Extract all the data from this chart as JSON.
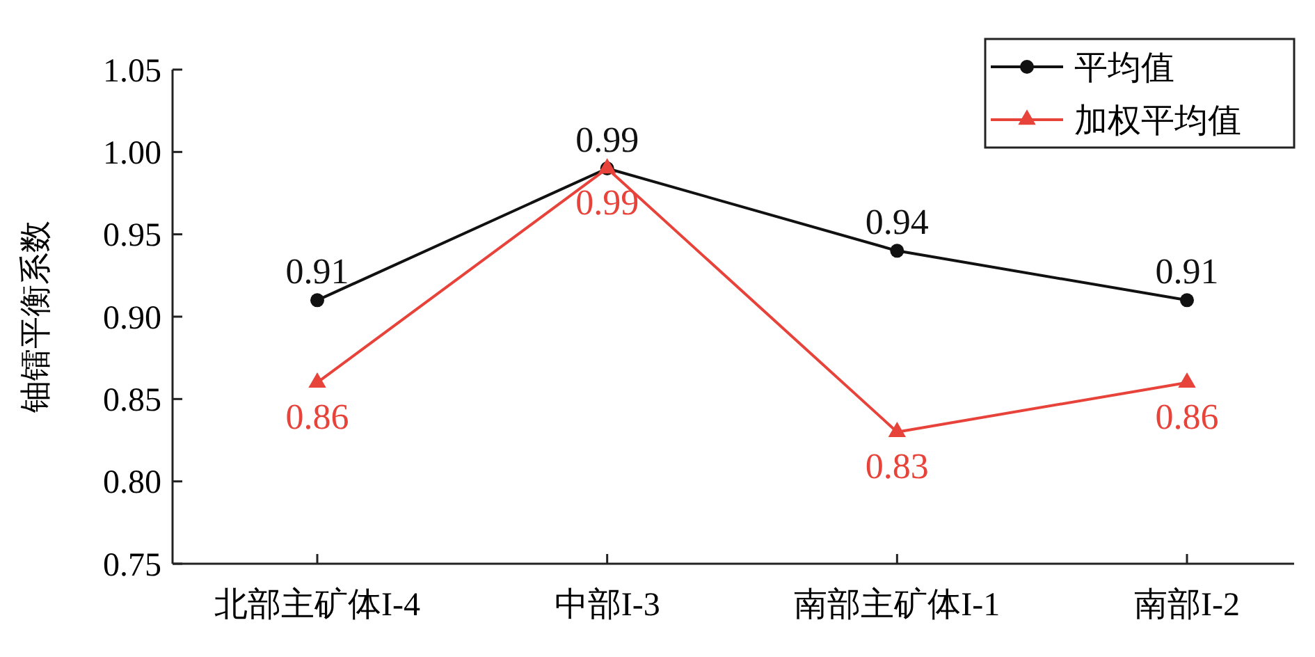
{
  "chart_data": {
    "type": "line",
    "ylabel": "铀镭平衡系数",
    "categories": [
      "北部主矿体I-4",
      "中部I-3",
      "南部主矿体I-1",
      "南部I-2"
    ],
    "series": [
      {
        "name": "平均值",
        "color": "#111111",
        "marker": "circle",
        "values": [
          0.91,
          0.99,
          0.94,
          0.91
        ]
      },
      {
        "name": "加权平均值",
        "color": "#e8433a",
        "marker": "triangle",
        "values": [
          0.86,
          0.99,
          0.83,
          0.86
        ]
      }
    ],
    "ylim": [
      0.75,
      1.05
    ],
    "yticks": [
      "0.75",
      "0.80",
      "0.85",
      "0.90",
      "0.95",
      "1.00",
      "1.05"
    ],
    "data_labels": true,
    "legend": "top right",
    "grid": false
  }
}
